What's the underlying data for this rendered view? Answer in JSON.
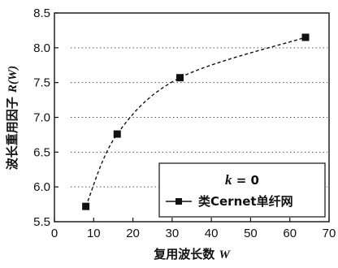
{
  "chart_data": {
    "type": "line",
    "xlabel": "复用波长数 ",
    "xlabel_var": "W",
    "ylabel": "波长重用因子 ",
    "ylabel_var": "R(W)",
    "xlim": [
      0,
      70
    ],
    "ylim": [
      5.5,
      8.5
    ],
    "x_ticks": [
      "0",
      "10",
      "20",
      "30",
      "40",
      "50",
      "60",
      "70"
    ],
    "y_ticks": [
      "5.5",
      "6.0",
      "6.5",
      "7.0",
      "7.5",
      "8.0",
      "8.5"
    ],
    "grid": "horizontal-dotted",
    "legend": {
      "placement": "bottom-right",
      "header_var": "k",
      "header_rest": " = 0"
    },
    "series": [
      {
        "name": "类Cernet单纤网",
        "line_style": "dashed",
        "marker": "square",
        "color": "#111111",
        "x": [
          8,
          16,
          32,
          64
        ],
        "y": [
          5.72,
          6.76,
          7.57,
          8.15
        ]
      }
    ]
  }
}
